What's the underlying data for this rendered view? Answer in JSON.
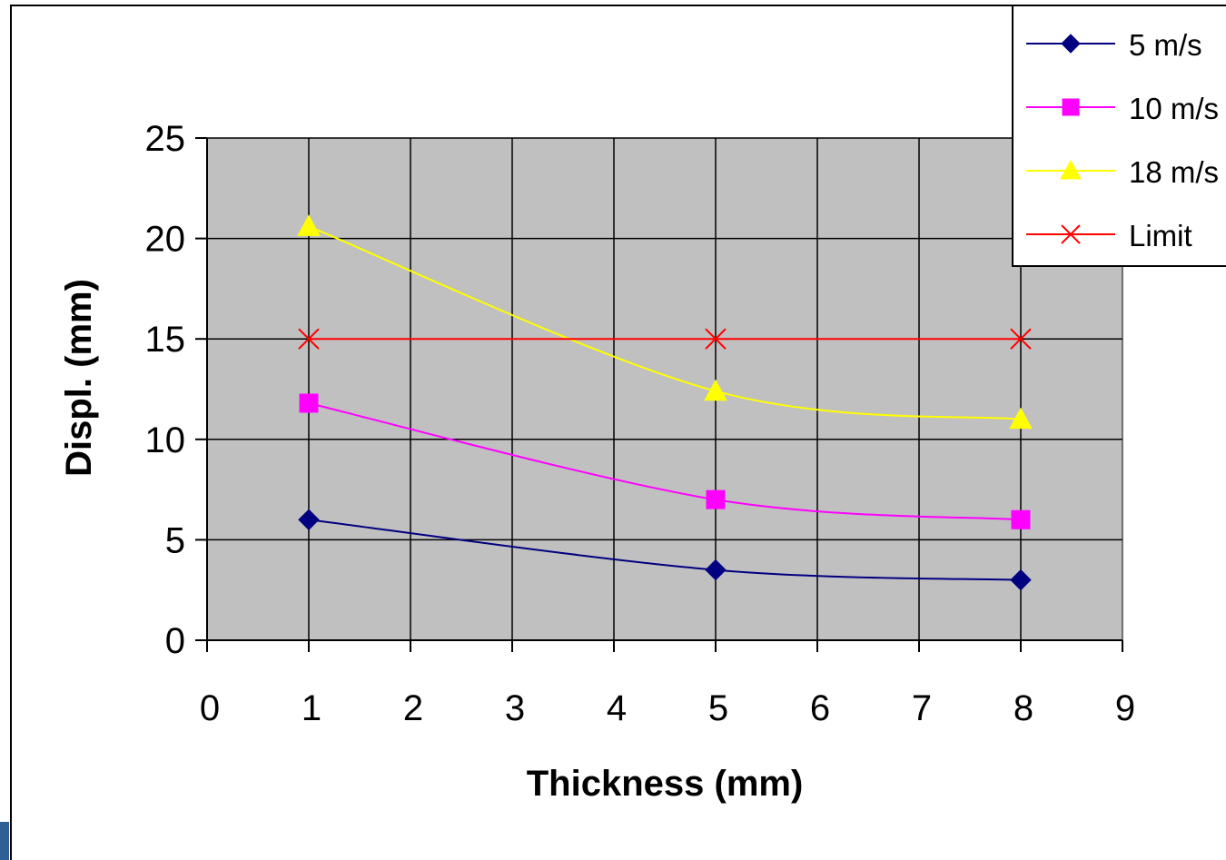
{
  "chart_data": {
    "type": "line",
    "xlabel": "Thickness (mm)",
    "ylabel": "Displ. (mm)",
    "xlim": [
      0,
      9
    ],
    "ylim": [
      0,
      25
    ],
    "x_ticks": [
      "0",
      "1",
      "2",
      "3",
      "4",
      "5",
      "6",
      "7",
      "8",
      "9"
    ],
    "y_ticks": [
      "0",
      "5",
      "10",
      "15",
      "20",
      "25"
    ],
    "grid": true,
    "plot_background": "#c0c0c0",
    "legend_position": "top-right",
    "series": [
      {
        "name": "5 m/s",
        "color": "#000080",
        "marker": "diamond",
        "x": [
          1,
          5,
          8
        ],
        "y": [
          6.0,
          3.5,
          3.0
        ]
      },
      {
        "name": "10 m/s",
        "color": "#ff00ff",
        "marker": "square",
        "x": [
          1,
          5,
          8
        ],
        "y": [
          11.8,
          7.0,
          6.0
        ]
      },
      {
        "name": "18 m/s",
        "color": "#ffff00",
        "marker": "triangle",
        "x": [
          1,
          5,
          8
        ],
        "y": [
          20.6,
          12.4,
          11.0
        ]
      },
      {
        "name": "Limit",
        "color": "#ff0000",
        "marker": "x",
        "x": [
          1,
          5,
          8
        ],
        "y": [
          15,
          15,
          15
        ]
      }
    ]
  }
}
